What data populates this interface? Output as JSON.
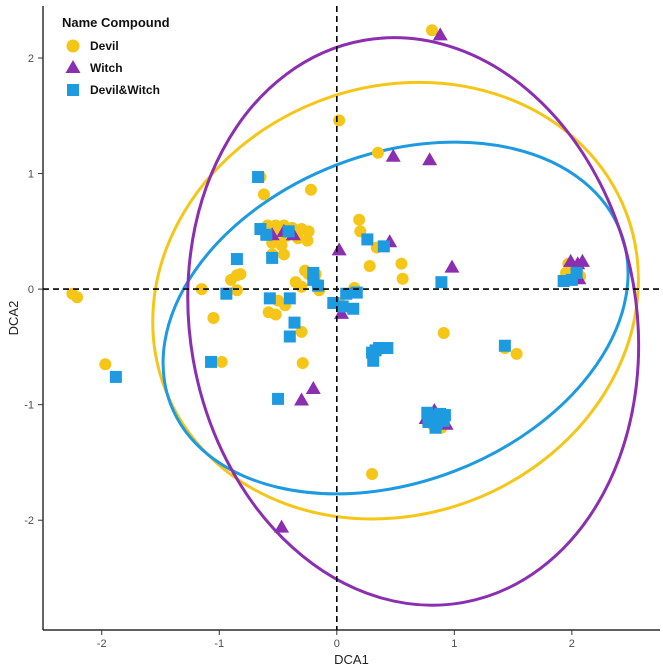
{
  "chart_data": {
    "type": "scatter",
    "xlabel": "DCA1",
    "ylabel": "DCA2",
    "xlim": [
      -2.5,
      2.75
    ],
    "ylim": [
      -2.95,
      2.45
    ],
    "x_ticks": [
      -2,
      -1,
      0,
      1,
      2
    ],
    "y_ticks": [
      -2,
      -1,
      0,
      1,
      2
    ],
    "grid": false,
    "reference_lines": {
      "x": 0,
      "y": 0,
      "style": "dashed"
    },
    "legend": {
      "title": "Name Compound",
      "placement": "top-left",
      "entries": [
        {
          "name": "Devil",
          "shape": "circle",
          "color": "#F5C518"
        },
        {
          "name": "Witch",
          "shape": "triangle",
          "color": "#8B2FB0"
        },
        {
          "name": "Devil&Witch",
          "shape": "square",
          "color": "#1E9AE0"
        }
      ]
    },
    "series": [
      {
        "name": "Devil",
        "shape": "circle",
        "color": "#F5C518",
        "points": [
          [
            0.81,
            2.24
          ],
          [
            0.02,
            1.46
          ],
          [
            0.35,
            1.18
          ],
          [
            -0.65,
            0.97
          ],
          [
            -0.62,
            0.82
          ],
          [
            -0.22,
            0.86
          ],
          [
            -0.59,
            0.55
          ],
          [
            -0.52,
            0.55
          ],
          [
            -0.45,
            0.55
          ],
          [
            -0.38,
            0.53
          ],
          [
            -0.3,
            0.52
          ],
          [
            -0.24,
            0.5
          ],
          [
            -0.58,
            0.47
          ],
          [
            -0.5,
            0.47
          ],
          [
            -0.43,
            0.46
          ],
          [
            -0.33,
            0.44
          ],
          [
            -0.25,
            0.42
          ],
          [
            -0.55,
            0.4
          ],
          [
            -0.47,
            0.38
          ],
          [
            -0.55,
            0.3
          ],
          [
            -0.45,
            0.3
          ],
          [
            0.19,
            0.6
          ],
          [
            0.2,
            0.5
          ],
          [
            0.28,
            0.2
          ],
          [
            0.34,
            0.36
          ],
          [
            0.55,
            0.22
          ],
          [
            0.56,
            0.09
          ],
          [
            -0.27,
            0.16
          ],
          [
            -0.24,
            0.13
          ],
          [
            -0.18,
            0.13
          ],
          [
            -0.82,
            0.13
          ],
          [
            -0.9,
            0.08
          ],
          [
            -0.35,
            0.06
          ],
          [
            -0.3,
            0.02
          ],
          [
            -0.15,
            -0.01
          ],
          [
            -0.17,
            0.05
          ],
          [
            -1.15,
            0.0
          ],
          [
            -0.85,
            -0.01
          ],
          [
            -0.5,
            -0.1
          ],
          [
            -0.44,
            -0.14
          ],
          [
            -0.58,
            -0.2
          ],
          [
            -0.52,
            -0.22
          ],
          [
            -0.3,
            -0.37
          ],
          [
            -1.05,
            -0.25
          ],
          [
            -0.98,
            -0.63
          ],
          [
            -0.29,
            -0.64
          ],
          [
            -2.25,
            -0.04
          ],
          [
            -2.21,
            -0.07
          ],
          [
            -1.97,
            -0.65
          ],
          [
            0.02,
            -0.12
          ],
          [
            0.15,
            0.01
          ],
          [
            0.91,
            -0.38
          ],
          [
            1.43,
            -0.51
          ],
          [
            1.53,
            -0.56
          ],
          [
            0.82,
            -1.08
          ],
          [
            0.86,
            -1.12
          ],
          [
            0.9,
            -1.17
          ],
          [
            0.82,
            -1.18
          ],
          [
            0.89,
            -1.2
          ],
          [
            0.77,
            -1.15
          ],
          [
            0.3,
            -1.6
          ],
          [
            1.97,
            0.22
          ],
          [
            1.95,
            0.14
          ],
          [
            2.05,
            0.14
          ],
          [
            2.07,
            0.11
          ],
          [
            -0.85,
            0.12
          ]
        ]
      },
      {
        "name": "Witch",
        "shape": "triangle",
        "color": "#8B2FB0",
        "points": [
          [
            0.88,
            2.2
          ],
          [
            0.48,
            1.15
          ],
          [
            0.79,
            1.12
          ],
          [
            0.02,
            0.34
          ],
          [
            0.45,
            0.41
          ],
          [
            -0.55,
            0.47
          ],
          [
            -0.45,
            0.5
          ],
          [
            -0.37,
            0.47
          ],
          [
            0.98,
            0.19
          ],
          [
            0.04,
            -0.21
          ],
          [
            -0.2,
            -0.86
          ],
          [
            -0.3,
            -0.96
          ],
          [
            -0.47,
            -2.06
          ],
          [
            0.76,
            -1.12
          ],
          [
            0.83,
            -1.05
          ],
          [
            0.89,
            -1.1
          ],
          [
            0.93,
            -1.17
          ],
          [
            1.99,
            0.24
          ],
          [
            2.05,
            0.22
          ],
          [
            2.09,
            0.24
          ],
          [
            2.06,
            0.09
          ]
        ]
      },
      {
        "name": "Devil&Witch",
        "shape": "square",
        "color": "#1E9AE0",
        "points": [
          [
            -0.67,
            0.97
          ],
          [
            -0.65,
            0.52
          ],
          [
            -0.6,
            0.47
          ],
          [
            -0.41,
            0.5
          ],
          [
            0.26,
            0.43
          ],
          [
            0.4,
            0.37
          ],
          [
            -0.85,
            0.26
          ],
          [
            -0.55,
            0.27
          ],
          [
            -0.2,
            0.14
          ],
          [
            -0.2,
            0.08
          ],
          [
            -0.16,
            0.03
          ],
          [
            -0.94,
            -0.04
          ],
          [
            -0.57,
            -0.08
          ],
          [
            -0.4,
            -0.08
          ],
          [
            0.08,
            -0.04
          ],
          [
            0.17,
            -0.03
          ],
          [
            -0.03,
            -0.12
          ],
          [
            0.14,
            -0.17
          ],
          [
            -0.36,
            -0.29
          ],
          [
            -0.4,
            -0.41
          ],
          [
            0.05,
            -0.15
          ],
          [
            0.33,
            -0.53
          ],
          [
            0.3,
            -0.55
          ],
          [
            0.36,
            -0.51
          ],
          [
            0.43,
            -0.51
          ],
          [
            0.31,
            -0.62
          ],
          [
            0.89,
            0.06
          ],
          [
            -1.07,
            -0.63
          ],
          [
            -1.88,
            -0.76
          ],
          [
            -0.5,
            -0.95
          ],
          [
            1.43,
            -0.49
          ],
          [
            0.77,
            -1.07
          ],
          [
            0.82,
            -1.1
          ],
          [
            0.88,
            -1.08
          ],
          [
            0.92,
            -1.09
          ],
          [
            0.78,
            -1.15
          ],
          [
            0.85,
            -1.16
          ],
          [
            0.91,
            -1.14
          ],
          [
            0.84,
            -1.2
          ],
          [
            1.93,
            0.07
          ],
          [
            2.0,
            0.08
          ],
          [
            2.04,
            0.14
          ]
        ]
      }
    ],
    "ellipses": [
      {
        "name": "Devil",
        "color": "#F5C518",
        "center": [
          0.5,
          -0.1
        ],
        "rx": 2.1,
        "ry": 1.85,
        "angle": -21
      },
      {
        "name": "Devil&Witch",
        "color": "#1E9AE0",
        "center": [
          0.5,
          -0.25
        ],
        "rx": 2.05,
        "ry": 1.42,
        "angle": -21
      },
      {
        "name": "Witch",
        "color": "#8B2FB0",
        "center": [
          0.65,
          -0.28
        ],
        "rx": 1.9,
        "ry": 2.47,
        "angle": -10
      }
    ]
  }
}
